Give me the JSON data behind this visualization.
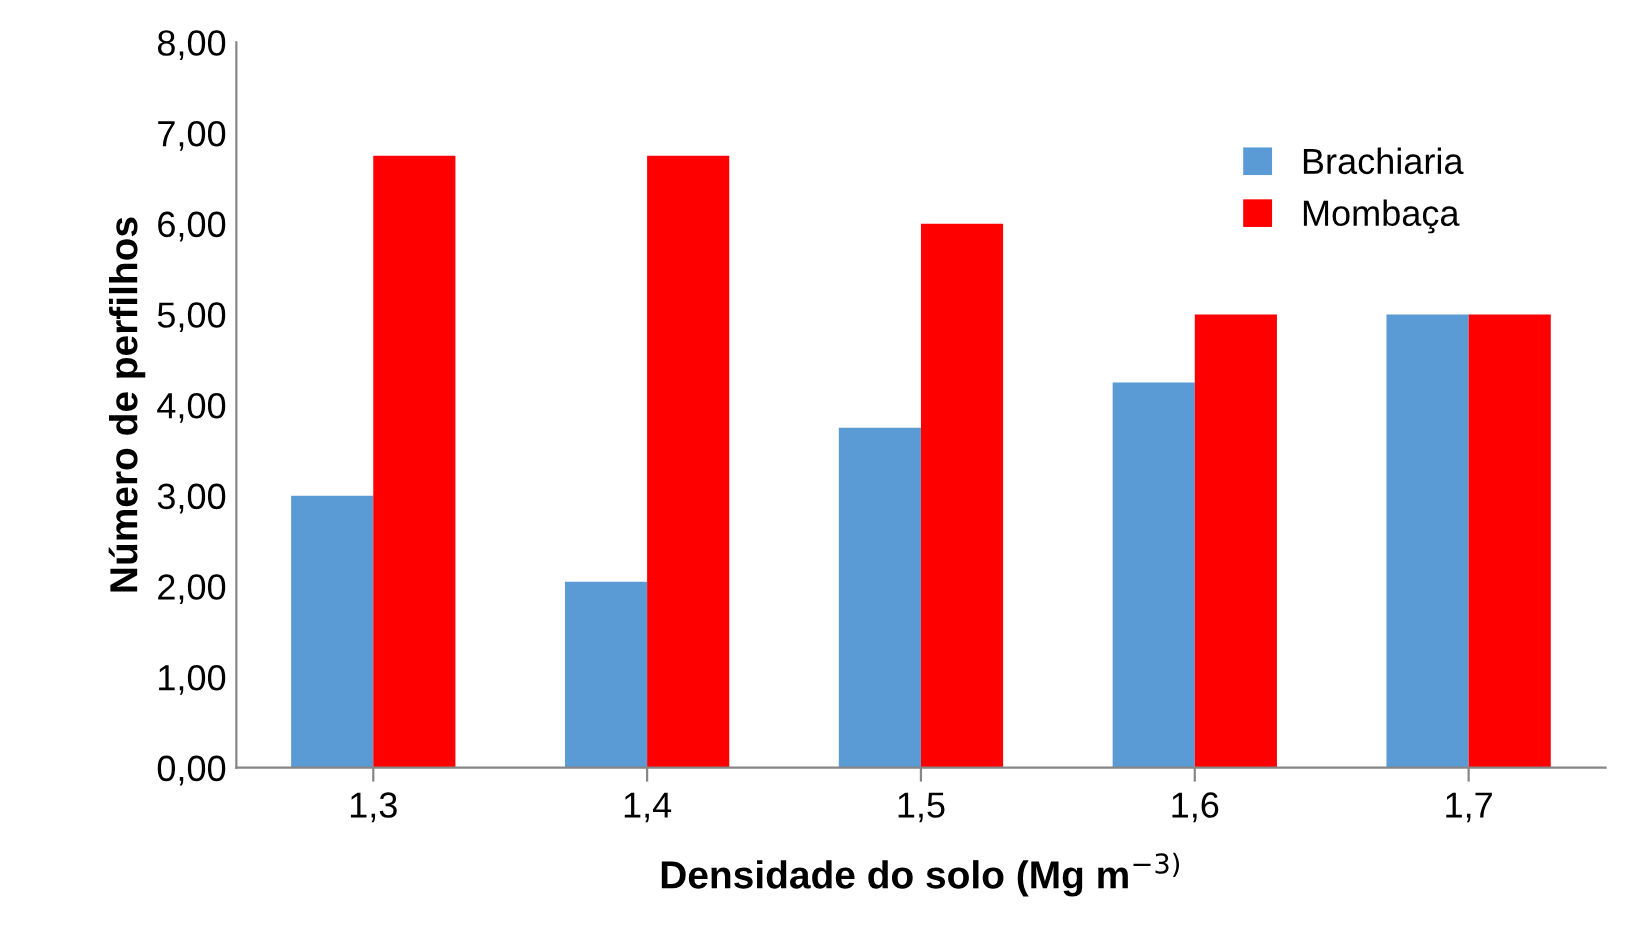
{
  "chart_data": {
    "type": "bar",
    "xlabel": "Densidade do solo (Mg m$^{−3)}$",
    "ylabel": "Número de perfilhos",
    "categories": [
      "1,3",
      "1,4",
      "1,5",
      "1,6",
      "1,7"
    ],
    "series": [
      {
        "name": "Brachiaria",
        "color": "#5b9bd5",
        "values": [
          3.0,
          2.05,
          3.75,
          4.25,
          5.0
        ]
      },
      {
        "name": "Mombaça",
        "color": "#ff0000",
        "values": [
          6.75,
          6.75,
          6.0,
          5.0,
          5.0
        ]
      }
    ],
    "ylim": [
      0,
      8
    ],
    "yticks": [
      {
        "value": 0,
        "label": "0,00"
      },
      {
        "value": 1,
        "label": "1,00"
      },
      {
        "value": 2,
        "label": "2,00"
      },
      {
        "value": 3,
        "label": "3,00"
      },
      {
        "value": 4,
        "label": "4,00"
      },
      {
        "value": 5,
        "label": "5,00"
      },
      {
        "value": 6,
        "label": "6,00"
      },
      {
        "value": 7,
        "label": "7,00"
      },
      {
        "value": 8,
        "label": "8,00"
      }
    ],
    "grid": false,
    "legend": "top right"
  }
}
